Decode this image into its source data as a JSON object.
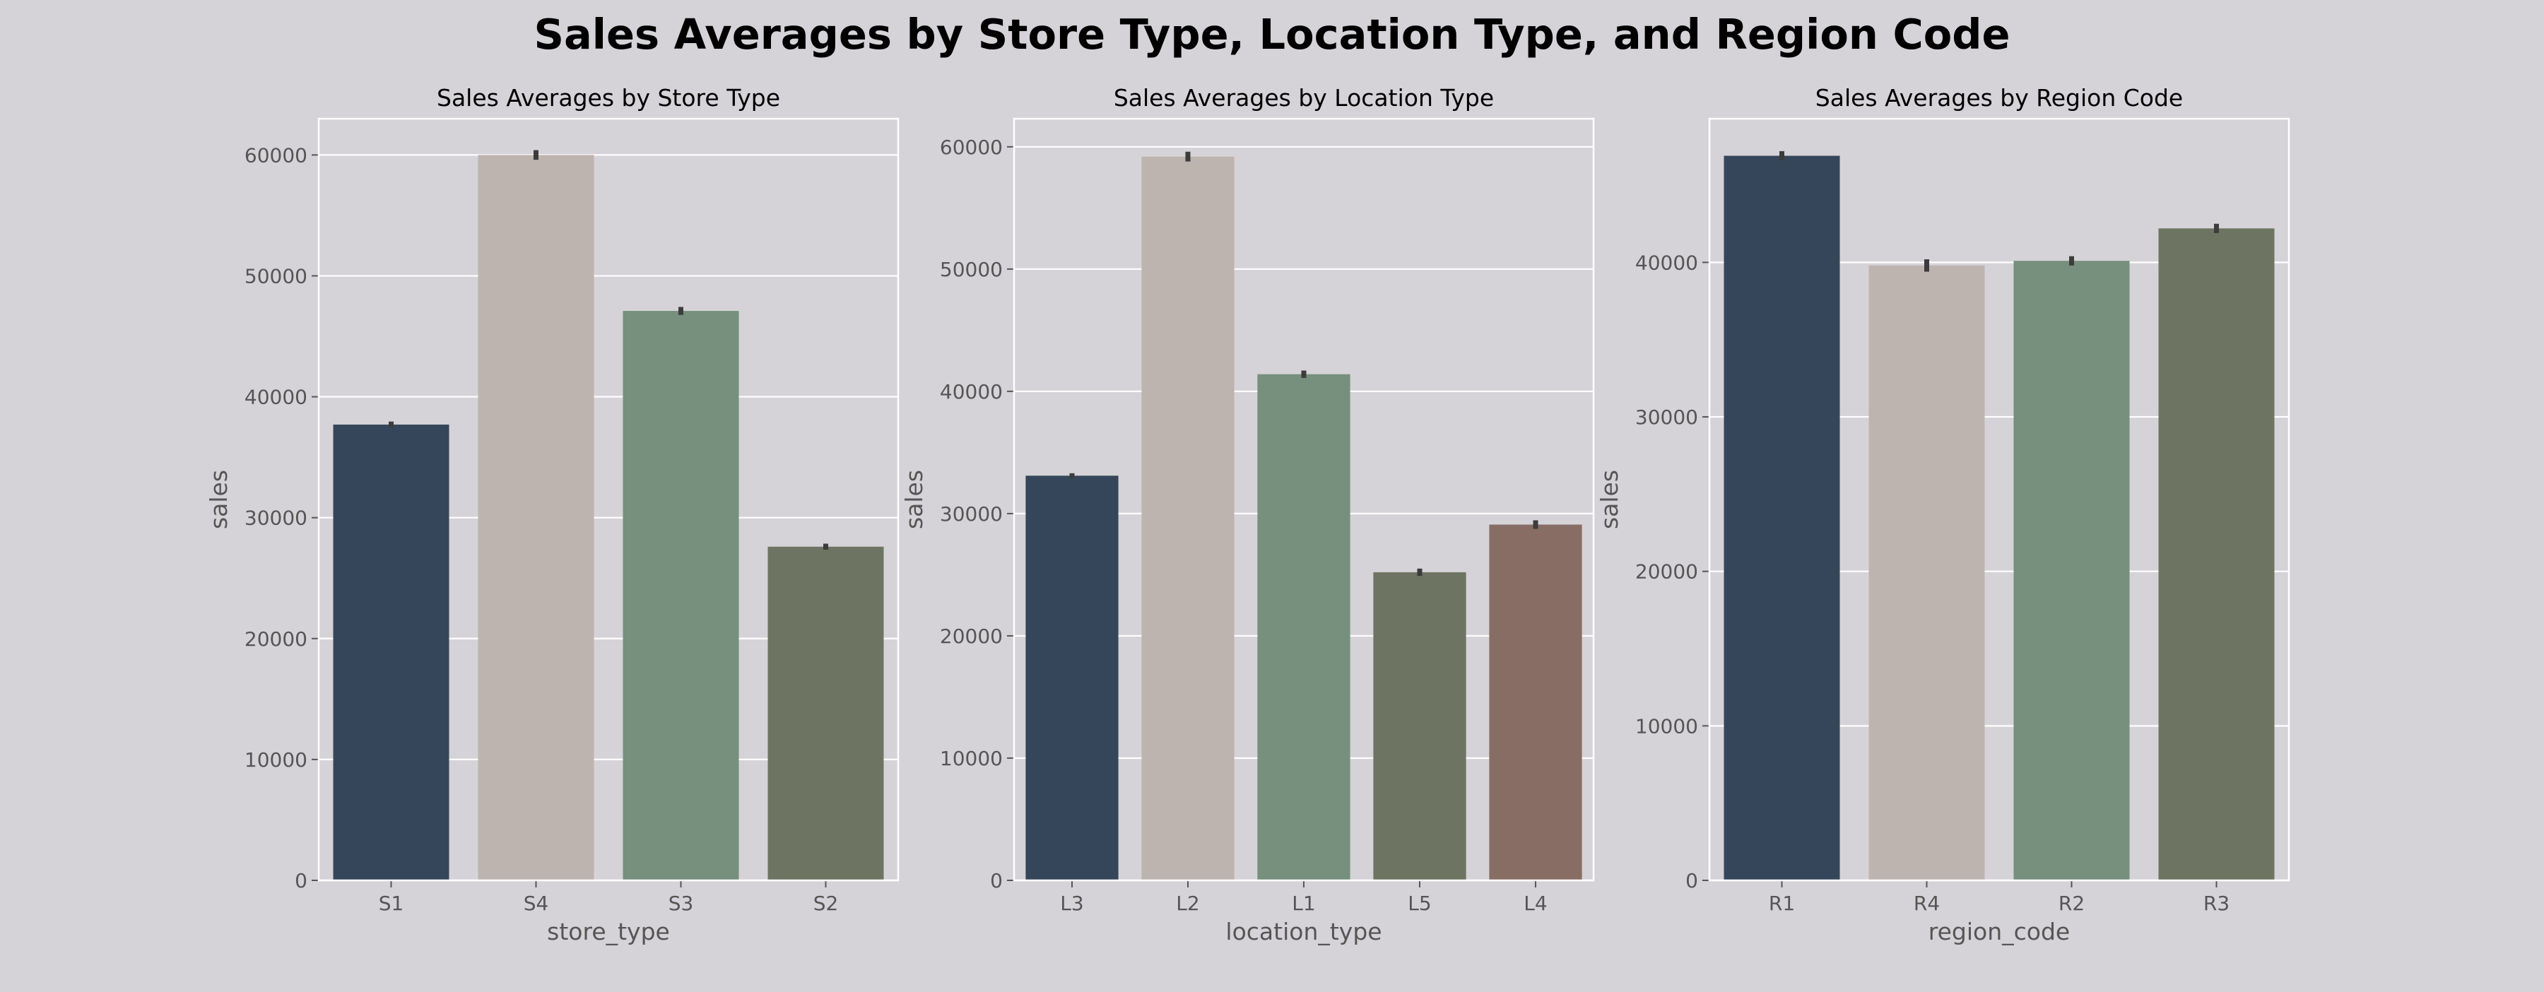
{
  "figure": {
    "title": "Sales Averages by Store Type, Location Type, and Region Code",
    "colors": {
      "background": "#d5d3d7",
      "grid": "#ffffff",
      "text": "#555555",
      "errorbar": "#3c3c3c"
    }
  },
  "chart_data": [
    {
      "type": "bar",
      "title": "Sales Averages by Store Type",
      "xlabel": "store_type",
      "ylabel": "sales",
      "categories": [
        "S1",
        "S4",
        "S3",
        "S2"
      ],
      "values": [
        37700,
        60000,
        47100,
        27600
      ],
      "error": [
        250,
        400,
        330,
        250
      ],
      "colors": [
        "#36465a",
        "#beb4af",
        "#778f7d",
        "#6d7462"
      ],
      "ylim": [
        0,
        63000
      ],
      "yticks": [
        0,
        10000,
        20000,
        30000,
        40000,
        50000,
        60000
      ],
      "grid": true
    },
    {
      "type": "bar",
      "title": "Sales Averages by Location Type",
      "xlabel": "location_type",
      "ylabel": "sales",
      "categories": [
        "L3",
        "L2",
        "L1",
        "L5",
        "L4"
      ],
      "values": [
        33100,
        59200,
        41400,
        25200,
        29100
      ],
      "error": [
        200,
        400,
        300,
        300,
        350
      ],
      "colors": [
        "#36465a",
        "#beb4af",
        "#778f7d",
        "#6d7462",
        "#876d63"
      ],
      "ylim": [
        0,
        62300
      ],
      "yticks": [
        0,
        10000,
        20000,
        30000,
        40000,
        50000,
        60000
      ],
      "grid": true
    },
    {
      "type": "bar",
      "title": "Sales Averages by Region Code",
      "xlabel": "region_code",
      "ylabel": "sales",
      "categories": [
        "R1",
        "R4",
        "R2",
        "R3"
      ],
      "values": [
        46900,
        39800,
        40100,
        42200
      ],
      "error": [
        300,
        400,
        300,
        300
      ],
      "colors": [
        "#36465a",
        "#beb4af",
        "#778f7d",
        "#6d7462"
      ],
      "ylim": [
        0,
        49300
      ],
      "yticks": [
        0,
        10000,
        20000,
        30000,
        40000
      ],
      "grid": true
    }
  ]
}
